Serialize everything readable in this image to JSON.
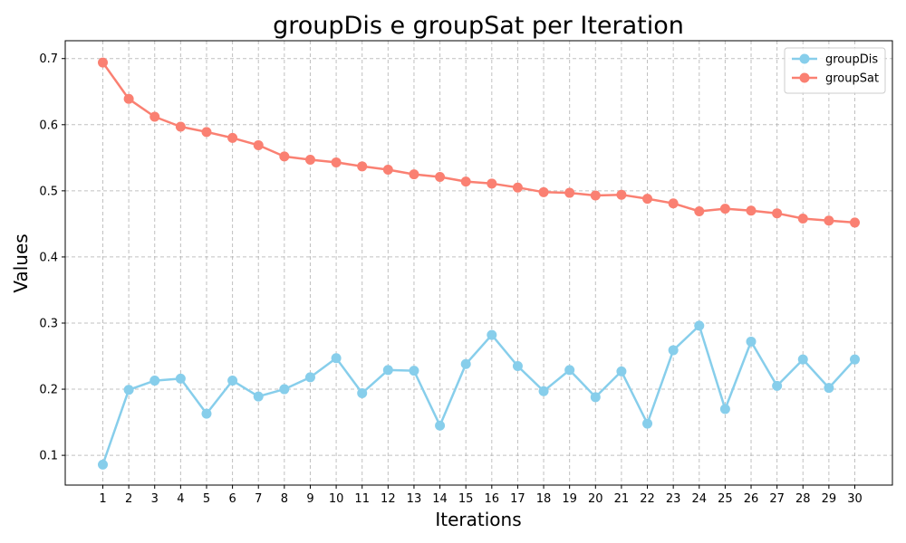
{
  "chart_data": {
    "type": "line",
    "title": "groupDis e groupSat per Iteration",
    "xlabel": "Iterations",
    "ylabel": "Values",
    "x": [
      1,
      2,
      3,
      4,
      5,
      6,
      7,
      8,
      9,
      10,
      11,
      12,
      13,
      14,
      15,
      16,
      17,
      18,
      19,
      20,
      21,
      22,
      23,
      24,
      25,
      26,
      27,
      28,
      29,
      30
    ],
    "ylim": [
      0.055,
      0.727
    ],
    "yticks": [
      0.1,
      0.2,
      0.3,
      0.4,
      0.5,
      0.6,
      0.7
    ],
    "ytick_labels": [
      "0.1",
      "0.2",
      "0.3",
      "0.4",
      "0.5",
      "0.6",
      "0.7"
    ],
    "grid": true,
    "legend_position": "top-right",
    "series": [
      {
        "name": "groupDis",
        "color": "#87CEEB",
        "values": [
          0.086,
          0.199,
          0.213,
          0.216,
          0.163,
          0.213,
          0.189,
          0.2,
          0.218,
          0.247,
          0.194,
          0.229,
          0.228,
          0.145,
          0.238,
          0.282,
          0.235,
          0.197,
          0.229,
          0.188,
          0.227,
          0.148,
          0.259,
          0.296,
          0.17,
          0.272,
          0.205,
          0.245,
          0.202,
          0.245
        ]
      },
      {
        "name": "groupSat",
        "color": "#FA8072",
        "values": [
          0.694,
          0.639,
          0.612,
          0.597,
          0.589,
          0.58,
          0.569,
          0.552,
          0.547,
          0.543,
          0.537,
          0.532,
          0.525,
          0.521,
          0.514,
          0.511,
          0.505,
          0.498,
          0.497,
          0.493,
          0.494,
          0.488,
          0.481,
          0.469,
          0.473,
          0.47,
          0.466,
          0.458,
          0.455,
          0.452
        ]
      }
    ]
  }
}
